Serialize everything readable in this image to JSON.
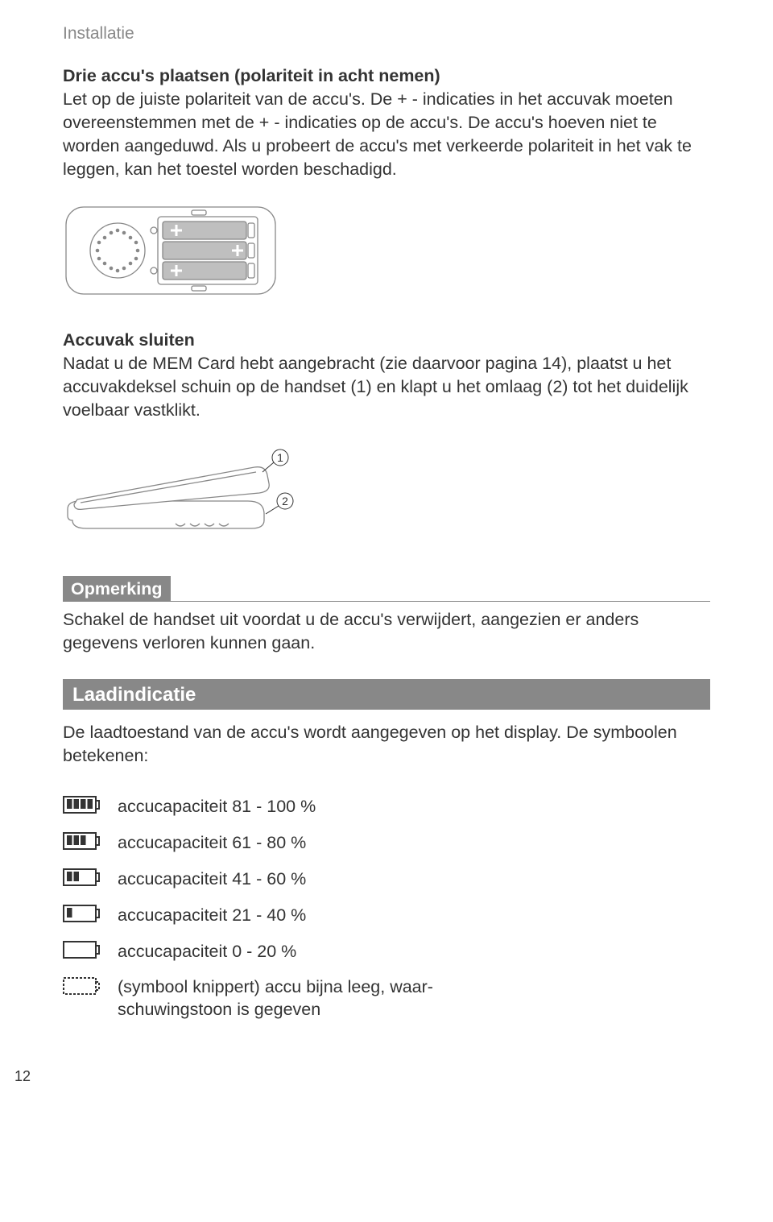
{
  "header": "Installatie",
  "section1": {
    "title": "Drie accu's plaatsen (polariteit in acht nemen)",
    "body": "Let op de juiste polariteit van de accu's. De + - indicaties in het accuvak moeten overeenstemmen met de + - indicaties op de accu's. De accu's hoeven niet te worden aangeduwd. Als u probeert de accu's met verkeerde polariteit in het vak te leggen, kan het toestel worden beschadigd."
  },
  "section2": {
    "title": "Accuvak sluiten",
    "body": "Nadat u de MEM Card hebt aangebracht (zie daarvoor pagina 14), plaatst u het accuvakdeksel schuin op de handset (1) en klapt u het omlaag (2) tot het duidelijk voelbaar vastklikt."
  },
  "note": {
    "title": "Opmerking",
    "body": "Schakel de handset uit voordat u de accu's verwijdert, aangezien er anders gegevens verloren kunnen gaan."
  },
  "section3": {
    "title": "Laadindicatie",
    "intro": "De laadtoestand van de accu's wordt aangegeven op het display. De symboolen betekenen:"
  },
  "levels": [
    {
      "bars": 4,
      "dashed": false,
      "label": "accucapaciteit 81 - 100 %"
    },
    {
      "bars": 3,
      "dashed": false,
      "label": "accucapaciteit 61 - 80 %"
    },
    {
      "bars": 2,
      "dashed": false,
      "label": "accucapaciteit 41 - 60 %"
    },
    {
      "bars": 1,
      "dashed": false,
      "label": "accucapaciteit 21 - 40 %"
    },
    {
      "bars": 0,
      "dashed": false,
      "label": "accucapaciteit 0 - 20 %"
    },
    {
      "bars": 0,
      "dashed": true,
      "label": "(symbool knippert) accu bijna leeg, waar-\nschuwingstoon is gegeven"
    }
  ],
  "pageNumber": "12",
  "colors": {
    "headerGray": "#888888",
    "textDark": "#333333",
    "iconStroke": "#333333",
    "diagramStroke": "#888888",
    "diagramFill": "#ffffff",
    "plusFill": "#ffffff",
    "plusBg": "#999999"
  },
  "diagramLabels": {
    "callout1": "1",
    "callout2": "2"
  }
}
